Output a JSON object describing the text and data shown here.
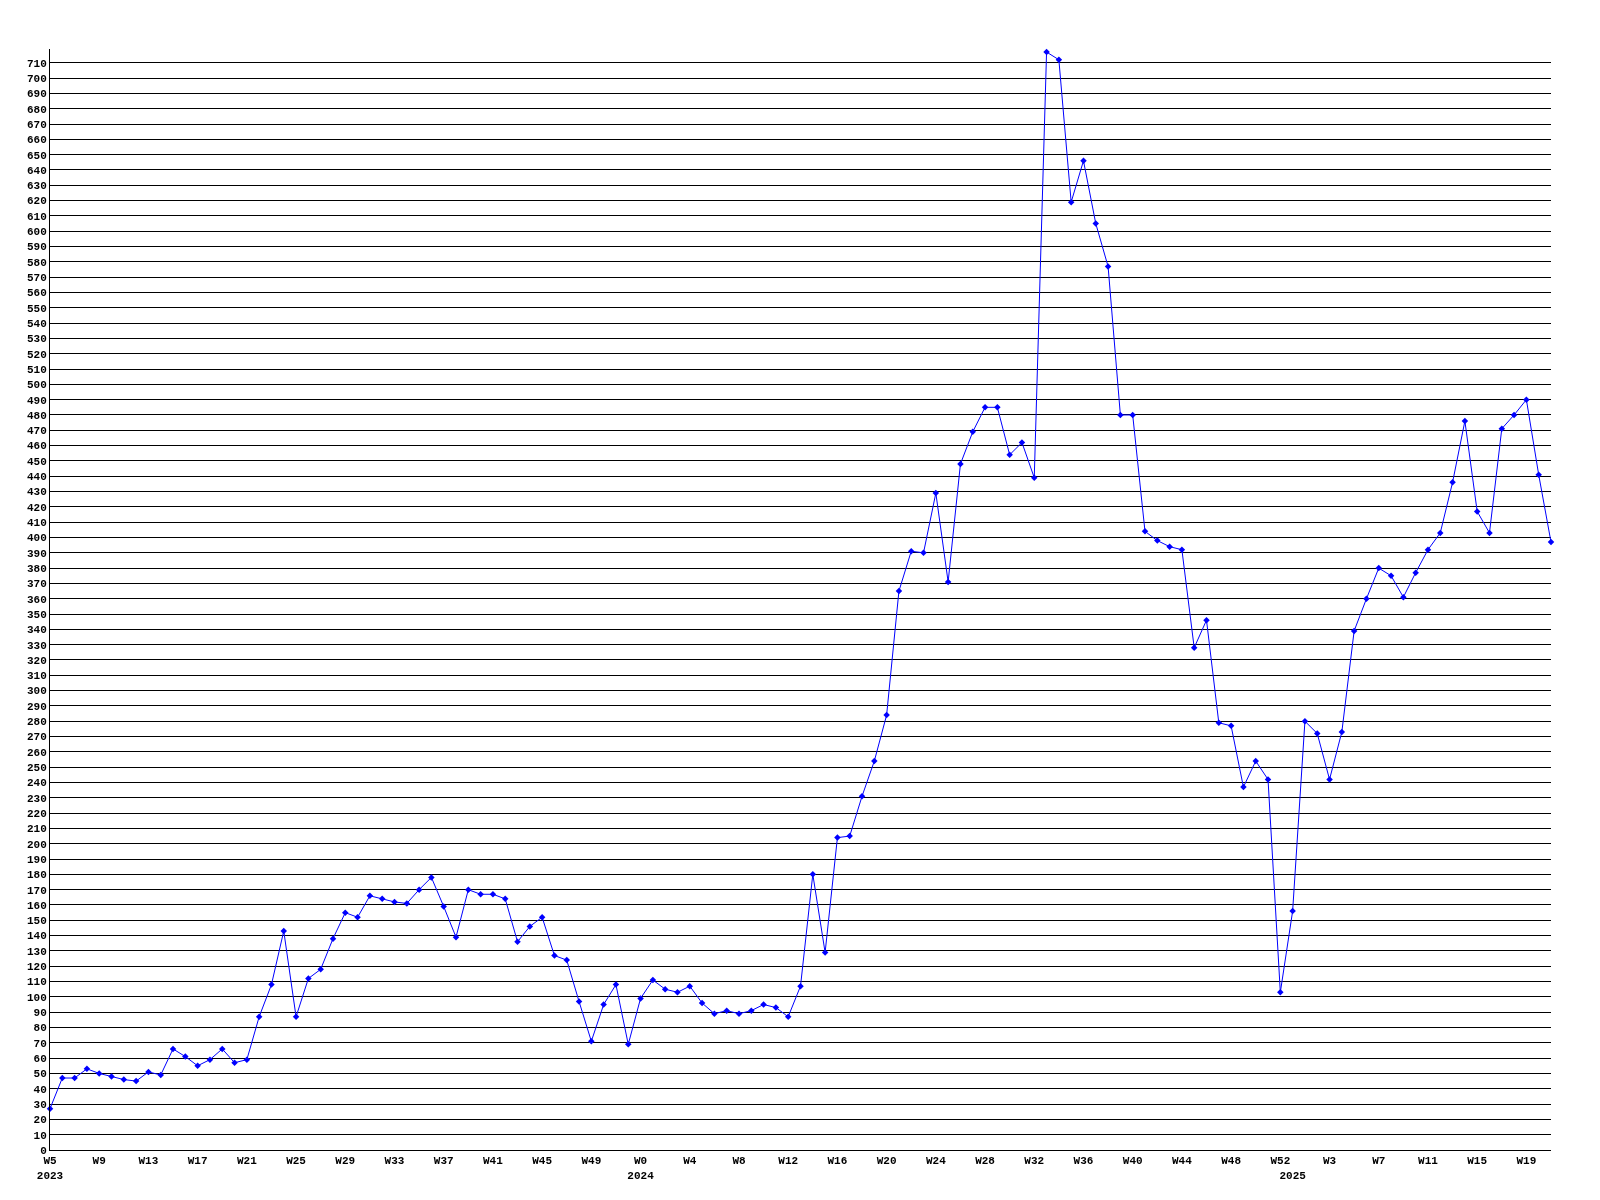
{
  "chart_data": {
    "type": "line",
    "categories": [
      "W5\n2023",
      null,
      null,
      null,
      "W9",
      null,
      null,
      null,
      "W13",
      null,
      null,
      null,
      "W17",
      null,
      null,
      null,
      "W21",
      null,
      null,
      null,
      "W25",
      null,
      null,
      null,
      "W29",
      null,
      null,
      null,
      "W33",
      null,
      null,
      null,
      "W37",
      null,
      null,
      null,
      "W41",
      null,
      null,
      null,
      "W45",
      null,
      null,
      null,
      "W49",
      null,
      null,
      null,
      "W0\n2024",
      null,
      null,
      null,
      "W4",
      null,
      null,
      null,
      "W8",
      null,
      null,
      null,
      "W12",
      null,
      null,
      null,
      "W16",
      null,
      null,
      null,
      "W20",
      null,
      null,
      null,
      "W24",
      null,
      null,
      null,
      "W28",
      null,
      null,
      null,
      "W32",
      null,
      null,
      null,
      "W36",
      null,
      null,
      null,
      "W40",
      null,
      null,
      null,
      "W44",
      null,
      null,
      null,
      "W48",
      null,
      null,
      null,
      "W52",
      "\n2025",
      null,
      null,
      "W3",
      null,
      null,
      null,
      "W7",
      null,
      null,
      null,
      "W11",
      null,
      null,
      null,
      "W15",
      null,
      null,
      null,
      "W19",
      null,
      null
    ],
    "series": [
      {
        "color": "#0000ff",
        "values": [
          27,
          47,
          47,
          53,
          50,
          48,
          46,
          45,
          51,
          49,
          66,
          61,
          55,
          59,
          66,
          57,
          59,
          87,
          108,
          143,
          87,
          112,
          118,
          138,
          155,
          152,
          166,
          164,
          162,
          161,
          170,
          178,
          159,
          139,
          170,
          167,
          167,
          164,
          136,
          146,
          152,
          127,
          124,
          97,
          71,
          95,
          108,
          69,
          99,
          111,
          105,
          103,
          107,
          96,
          89,
          91,
          89,
          91,
          95,
          93,
          87,
          107,
          180,
          129,
          204,
          205,
          231,
          254,
          284,
          365,
          391,
          390,
          429,
          371,
          448,
          469,
          485,
          485,
          454,
          462,
          439,
          717,
          712,
          619,
          646,
          605,
          577,
          480,
          480,
          404,
          398,
          394,
          392,
          328,
          346,
          279,
          277,
          237,
          254,
          242,
          103,
          156,
          280,
          272,
          242,
          273,
          339,
          360,
          380,
          375,
          361,
          377,
          392,
          403,
          436,
          476,
          417,
          403,
          471,
          480,
          490,
          441,
          397
        ]
      }
    ],
    "ylim": [
      0,
      719
    ],
    "yticks": [
      0,
      10,
      20,
      30,
      40,
      50,
      60,
      70,
      80,
      90,
      100,
      110,
      120,
      130,
      140,
      150,
      160,
      170,
      180,
      190,
      200,
      210,
      220,
      230,
      240,
      250,
      260,
      270,
      280,
      290,
      300,
      310,
      320,
      330,
      340,
      350,
      360,
      370,
      380,
      390,
      400,
      410,
      420,
      430,
      440,
      450,
      460,
      470,
      480,
      490,
      500,
      510,
      520,
      530,
      540,
      550,
      560,
      570,
      580,
      590,
      600,
      610,
      620,
      630,
      640,
      650,
      660,
      670,
      680,
      690,
      700,
      710
    ],
    "grid": "y",
    "marker": "diamond",
    "line_style": "solid"
  }
}
